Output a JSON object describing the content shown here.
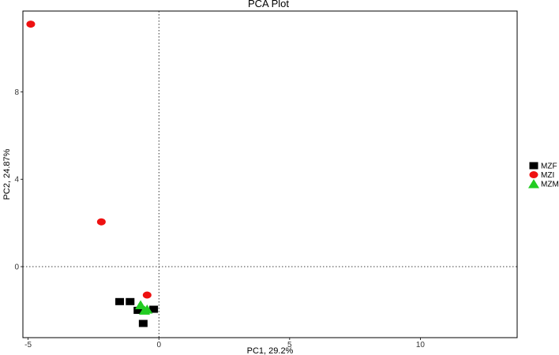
{
  "chart_data": {
    "type": "scatter",
    "title": "PCA Plot",
    "xlabel": "PC1, 29.2%",
    "ylabel": "PC2, 24.87%",
    "xlim": [
      -5.2,
      13.7
    ],
    "ylim": [
      -3.25,
      11.7
    ],
    "xticks": [
      -5,
      0,
      5,
      10
    ],
    "yticks": [
      0,
      4,
      8
    ],
    "reference_lines": {
      "x": 0,
      "y": 0,
      "style": "dotted"
    },
    "grid": false,
    "legend_position": "right",
    "series": [
      {
        "name": "MZF",
        "marker": "square",
        "color": "#000000",
        "points": [
          [
            -1.5,
            -1.6
          ],
          [
            -1.1,
            -1.6
          ],
          [
            -0.2,
            -1.95
          ],
          [
            -0.6,
            -2.6
          ],
          [
            -0.8,
            -2.0
          ]
        ]
      },
      {
        "name": "MZI",
        "marker": "circle",
        "color": "#ee1111",
        "points": [
          [
            -4.9,
            11.1
          ],
          [
            -2.2,
            2.05
          ],
          [
            -0.45,
            -1.3
          ]
        ]
      },
      {
        "name": "MZM",
        "marker": "triangle",
        "color": "#22cc22",
        "points": [
          [
            -0.7,
            -1.75
          ],
          [
            -0.55,
            -2.0
          ],
          [
            -0.45,
            -1.95
          ]
        ]
      }
    ]
  }
}
